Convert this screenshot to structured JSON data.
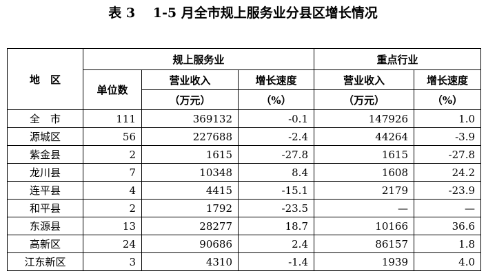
{
  "title": "表 3　 1-5 月全市规上服务业分县区增长情况",
  "table": {
    "header": {
      "region": "地　区",
      "group_a": "规上服务业",
      "group_b": "重点行业",
      "columns": [
        "单位数",
        "营业收入",
        "增长速度",
        "营业收入",
        "增长速度"
      ],
      "units": [
        "（万元）",
        "（%）",
        "（万元）",
        "（%）"
      ]
    },
    "rows": [
      [
        "全　市",
        "111",
        "369132",
        "-0.1",
        "147926",
        "1.0"
      ],
      [
        "源城区",
        "56",
        "227688",
        "-2.4",
        "44264",
        "-3.9"
      ],
      [
        "紫金县",
        "2",
        "1615",
        "-27.8",
        "1615",
        "-27.8"
      ],
      [
        "龙川县",
        "7",
        "10348",
        "8.4",
        "1608",
        "24.2"
      ],
      [
        "连平县",
        "4",
        "4415",
        "-15.1",
        "2179",
        "-23.9"
      ],
      [
        "和平县",
        "2",
        "1792",
        "-23.5",
        "—",
        "—"
      ],
      [
        "东源县",
        "13",
        "28277",
        "18.7",
        "10166",
        "36.6"
      ],
      [
        "高新区",
        "24",
        "90686",
        "2.4",
        "86157",
        "1.8"
      ],
      [
        "江东新区",
        "3",
        "4310",
        "-1.4",
        "1939",
        "4.0"
      ]
    ]
  }
}
